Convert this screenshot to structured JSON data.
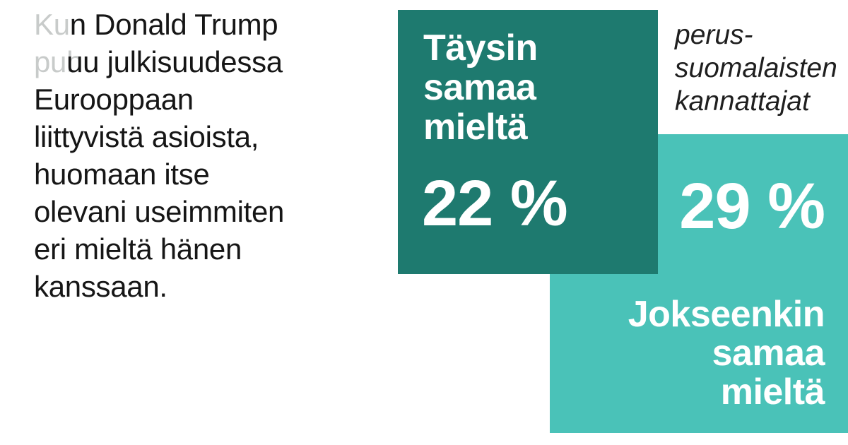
{
  "page": {
    "background": "#ffffff"
  },
  "intro": {
    "text_color": "#161616",
    "ghost_color": "#c8cbca",
    "full_statement": "Kun Donald Trump puhuu julkisuudessa Eurooppaan liittyvistä asioista, huomaan itse olevani useimmiten eri mieltä hänen kanssaan.",
    "lines": [
      {
        "ghost": "Kun",
        "main": "n Donald Trump"
      },
      {
        "ghost": "puh",
        "main": "uu julkisuudessa"
      },
      {
        "ghost": "",
        "main": "Eurooppaan"
      },
      {
        "ghost": "",
        "main": "liittyvistä asioista,"
      },
      {
        "ghost": "",
        "main": "huomaan itse"
      },
      {
        "ghost": "",
        "main": "olevani useimmiten"
      },
      {
        "ghost": "",
        "main": "eri mieltä hänen"
      },
      {
        "ghost": "",
        "main": "kanssaan."
      }
    ]
  },
  "group_label": {
    "color": "#1f1f1f",
    "lines": [
      "perus-",
      "suomalaisten",
      "kannattajat"
    ]
  },
  "squares": {
    "dark": {
      "color": "#1e7a6f",
      "label_lines": [
        "Täysin",
        "samaa",
        "mieltä"
      ],
      "value_label": "22 %"
    },
    "light": {
      "color": "#4ac2b8",
      "value_label": "29 %",
      "label_lines": [
        "Jokseenkin",
        "samaa",
        "mieltä"
      ]
    }
  },
  "chart_data": {
    "type": "area",
    "subtype": "area-proportional-squares",
    "title": "",
    "group": "perussuomalaisten kannattajat",
    "categories": [
      "Täysin samaa mieltä",
      "Jokseenkin samaa mieltä"
    ],
    "values": [
      22,
      29
    ],
    "unit": "%",
    "colors": [
      "#1e7a6f",
      "#4ac2b8"
    ],
    "statement": "Kun Donald Trump puhuu julkisuudessa Eurooppaan liittyvistä asioista, huomaan itse olevani useimmiten eri mieltä hänen kanssaan.",
    "layout": "two overlapping squares, dark square top-left above light square bottom-right, sizes proportional to values"
  }
}
